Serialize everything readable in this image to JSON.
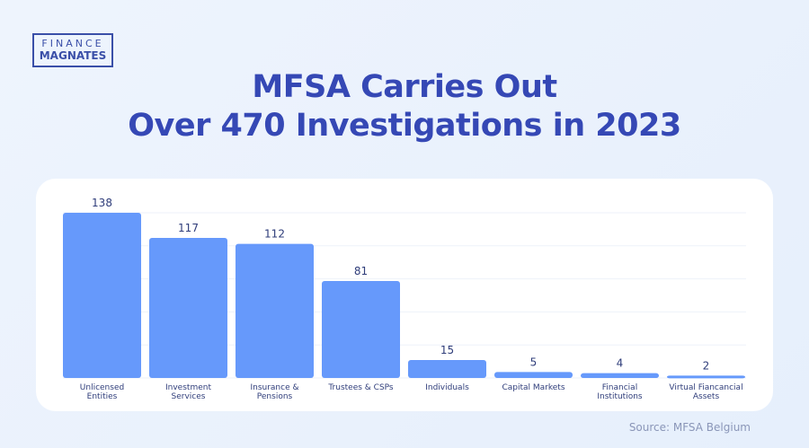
{
  "logo": {
    "line1": "FINANCE",
    "line2": "MAGNATES"
  },
  "title": {
    "line1": "MFSA Carries Out",
    "line2": "Over 470 Investigations in 2023"
  },
  "source": "Source: MFSA Belgium",
  "colors": {
    "bar": "#6699fb",
    "title": "#3548b5",
    "label": "#2f3d7a"
  },
  "chart_data": {
    "type": "bar",
    "categories": [
      [
        "Unlicensed",
        "Entities"
      ],
      [
        "Investment",
        "Services"
      ],
      [
        "Insurance &",
        "Pensions"
      ],
      [
        "Trustees & CSPs"
      ],
      [
        "Individuals"
      ],
      [
        "Capital Markets"
      ],
      [
        "Financial",
        "Institutions"
      ],
      [
        "Virtual Fiancancial",
        "Assets"
      ]
    ],
    "values": [
      138,
      117,
      112,
      81,
      15,
      5,
      4,
      2
    ],
    "title": "",
    "xlabel": "",
    "ylabel": "",
    "ylim": [
      0,
      138
    ],
    "grid": true
  }
}
